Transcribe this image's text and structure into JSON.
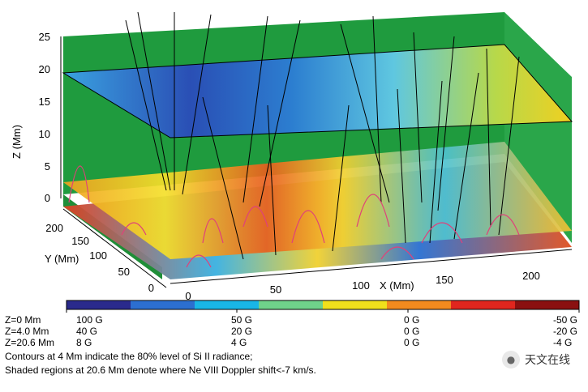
{
  "axes": {
    "z_label": "Z (Mm)",
    "y_label": "Y (Mm)",
    "x_label": "X (Mm)",
    "z_ticks": [
      "0",
      "5",
      "10",
      "15",
      "20",
      "25"
    ],
    "y_ticks": [
      "0",
      "50",
      "100",
      "150",
      "200"
    ],
    "x_ticks": [
      "0",
      "50",
      "100",
      "150",
      "200"
    ]
  },
  "colorbar": {
    "colors": [
      "#2a2a8c",
      "#2c6fd0",
      "#19b6e6",
      "#6fd18a",
      "#f0e01c",
      "#f28a1e",
      "#e0261e",
      "#8a1010"
    ],
    "rows": [
      {
        "level": "Z=0 Mm",
        "v1": "100 G",
        "v2": "50 G",
        "v3": "0 G",
        "v4": "-50 G"
      },
      {
        "level": "Z=4.0 Mm",
        "v1": "40 G",
        "v2": "20 G",
        "v3": "0 G",
        "v4": "-20 G"
      },
      {
        "level": "Z=20.6 Mm",
        "v1": "8 G",
        "v2": "4 G",
        "v3": "0 G",
        "v4": "-4 G"
      }
    ]
  },
  "caption": {
    "line1": "Contours at 4 Mm indicate the 80% level of Si II radiance;",
    "line2": "Shaded regions at 20.6 Mm denote where Ne VIII Doppler shift<-7 km/s."
  },
  "watermark": {
    "text": "天文在线"
  },
  "colors": {
    "box_wall": "#1f9b3e",
    "field_line": "#000000",
    "loop": "#e0407a"
  }
}
